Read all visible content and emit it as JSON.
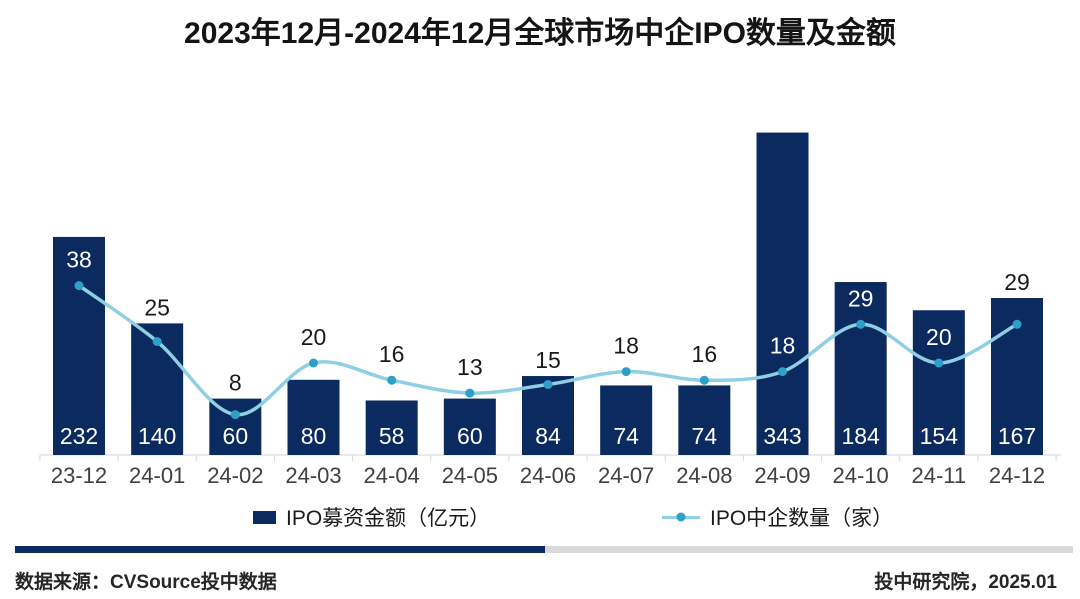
{
  "title": "2023年12月-2024年12月全球市场中企IPO数量及金额",
  "chart_data": {
    "type": "bar",
    "subtype": "bar-line-combo",
    "title": "2023年12月-2024年12月全球市场中企IPO数量及金额",
    "categories": [
      "23-12",
      "24-01",
      "24-02",
      "24-03",
      "24-04",
      "24-05",
      "24-06",
      "24-07",
      "24-08",
      "24-09",
      "24-10",
      "24-11",
      "24-12"
    ],
    "series": [
      {
        "name": "IPO募资金额（亿元）",
        "type": "bar",
        "values": [
          232,
          140,
          60,
          80,
          58,
          60,
          84,
          74,
          74,
          343,
          184,
          154,
          167
        ]
      },
      {
        "name": "IPO中企数量（家）",
        "type": "line",
        "values": [
          38,
          25,
          8,
          20,
          16,
          13,
          15,
          18,
          16,
          18,
          29,
          20,
          29
        ]
      }
    ],
    "xlabel": "",
    "ylabel": "",
    "grid": false,
    "legend_position": "bottom",
    "value_labels": "all"
  },
  "legend": {
    "bar_label": "IPO募资金额（亿元）",
    "line_label": "IPO中企数量（家）"
  },
  "footer": {
    "source": "数据来源：CVSource投中数据",
    "publisher": "投中研究院，2025.01"
  },
  "colors": {
    "bar": "#0b2a60",
    "line": "#8ecfe4",
    "marker": "#2e9fc7",
    "axis": "#d6d6d6",
    "divider_gray": "#d9d9d9",
    "label_dark": "#1a1a1a",
    "label_white": "#ffffff",
    "xlabel": "#404040",
    "footer_text": "#262626"
  }
}
